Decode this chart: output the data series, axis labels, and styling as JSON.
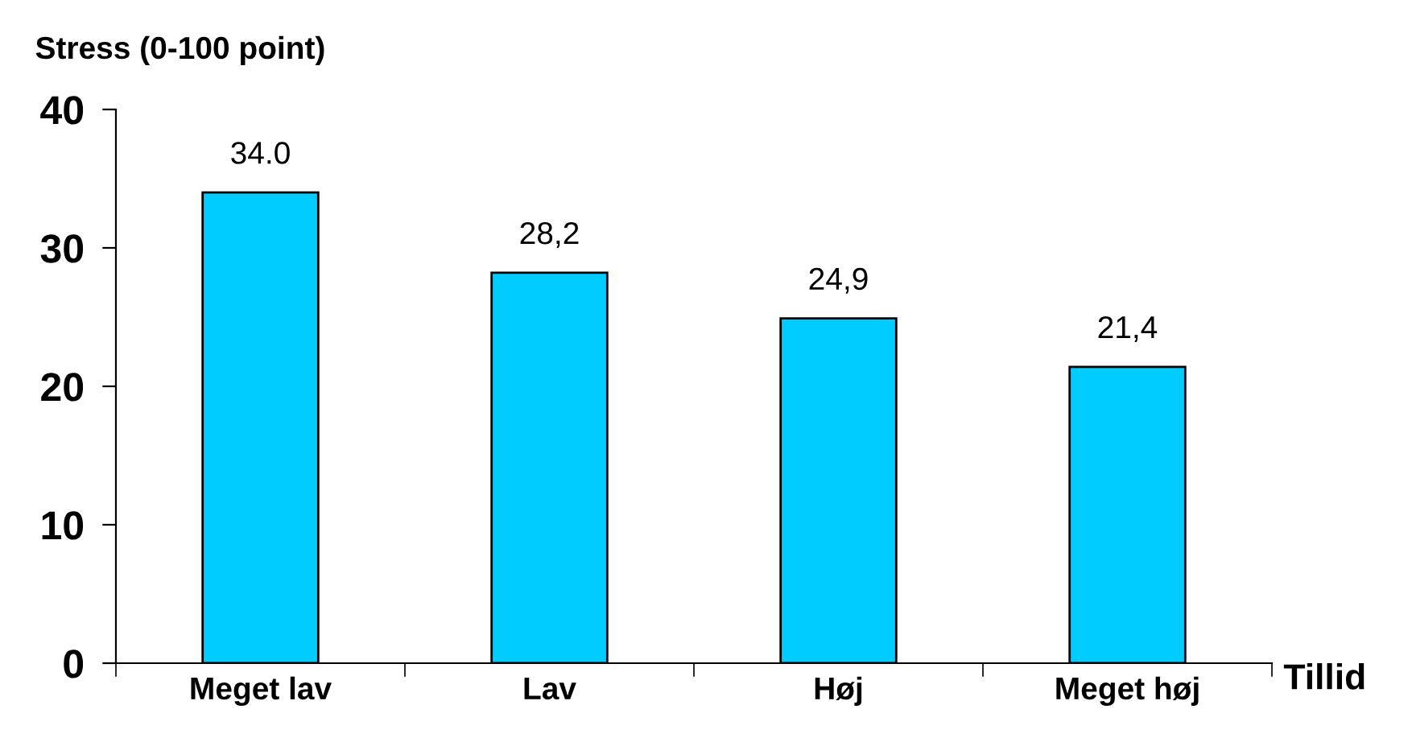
{
  "chart_data": {
    "type": "bar",
    "xlabel": "Tillid",
    "ylabel": "Stress (0-100 point)",
    "categories": [
      "Meget lav",
      "Lav",
      "Høj",
      "Meget høj"
    ],
    "values": [
      34.0,
      28.2,
      24.9,
      21.4
    ],
    "value_labels": [
      "34.0",
      "28,2",
      "24,9",
      "21,4"
    ],
    "color": "#00ccff",
    "ylim": [
      0,
      40
    ],
    "yticks": [
      0,
      10,
      20,
      30,
      40
    ],
    "grid": false
  }
}
